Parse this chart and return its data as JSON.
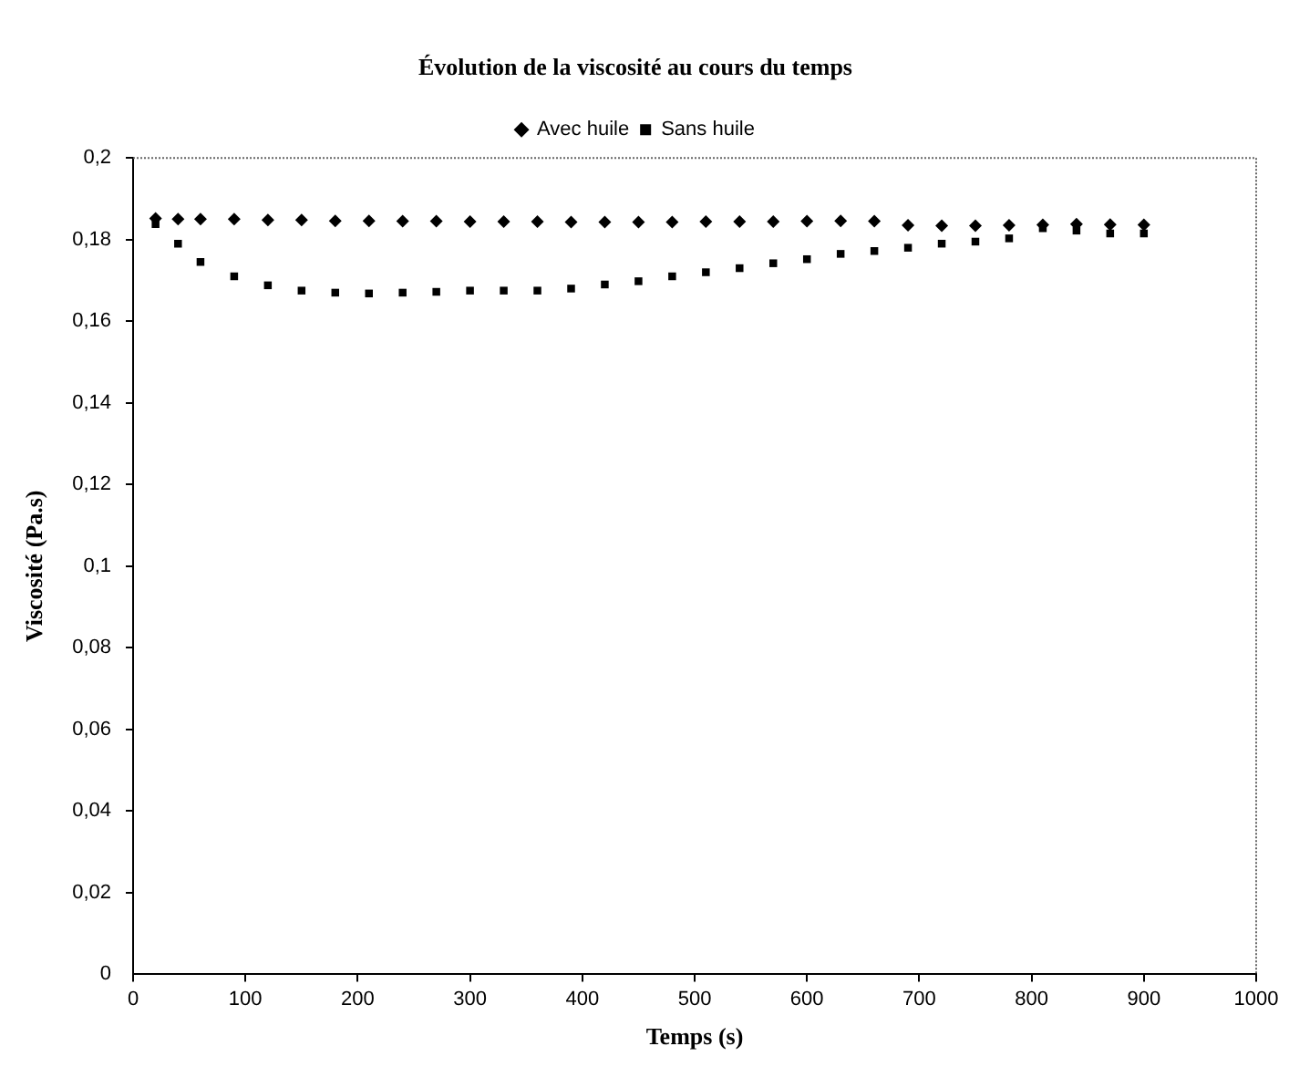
{
  "chart_data": {
    "type": "scatter",
    "title": "Évolution de la viscosité au cours du temps",
    "xlabel": "Temps (s)",
    "ylabel": "Viscosité (Pa.s)",
    "x": [
      20,
      40,
      60,
      90,
      120,
      150,
      180,
      210,
      240,
      270,
      300,
      330,
      360,
      390,
      420,
      450,
      480,
      510,
      540,
      570,
      600,
      630,
      660,
      690,
      720,
      750,
      780,
      810,
      840,
      870,
      900
    ],
    "series": [
      {
        "name": "Avec huile",
        "color": "#000000",
        "marker": "diamond",
        "values": [
          0.1852,
          0.185,
          0.185,
          0.185,
          0.1848,
          0.1848,
          0.1846,
          0.1846,
          0.1845,
          0.1845,
          0.1844,
          0.1844,
          0.1844,
          0.1843,
          0.1843,
          0.1843,
          0.1843,
          0.1844,
          0.1844,
          0.1844,
          0.1845,
          0.1846,
          0.1845,
          0.1835,
          0.1834,
          0.1834,
          0.1835,
          0.1836,
          0.1838,
          0.1837,
          0.1836
        ]
      },
      {
        "name": "Sans huile",
        "color": "#000000",
        "marker": "square",
        "values": [
          0.1838,
          0.179,
          0.1745,
          0.171,
          0.1688,
          0.1675,
          0.167,
          0.1668,
          0.167,
          0.1672,
          0.1675,
          0.1675,
          0.1675,
          0.168,
          0.169,
          0.1698,
          0.171,
          0.172,
          0.173,
          0.1742,
          0.1752,
          0.1765,
          0.1772,
          0.178,
          0.179,
          0.1795,
          0.1803,
          0.1828,
          0.1822,
          0.1815,
          0.1815
        ]
      }
    ],
    "xlim": [
      0,
      1000
    ],
    "xticks": [
      0,
      100,
      200,
      300,
      400,
      500,
      600,
      700,
      800,
      900,
      1000
    ],
    "ylim": [
      0,
      0.2
    ],
    "yticks": [
      {
        "value": 0,
        "label": "0"
      },
      {
        "value": 0.02,
        "label": "0,02"
      },
      {
        "value": 0.04,
        "label": "0,04"
      },
      {
        "value": 0.06,
        "label": "0,06"
      },
      {
        "value": 0.08,
        "label": "0,08"
      },
      {
        "value": 0.1,
        "label": "0,1"
      },
      {
        "value": 0.12,
        "label": "0,12"
      },
      {
        "value": 0.14,
        "label": "0,14"
      },
      {
        "value": 0.16,
        "label": "0,16"
      },
      {
        "value": 0.18,
        "label": "0,18"
      },
      {
        "value": 0.2,
        "label": "0,2"
      }
    ],
    "grid": false,
    "legend": "top"
  }
}
